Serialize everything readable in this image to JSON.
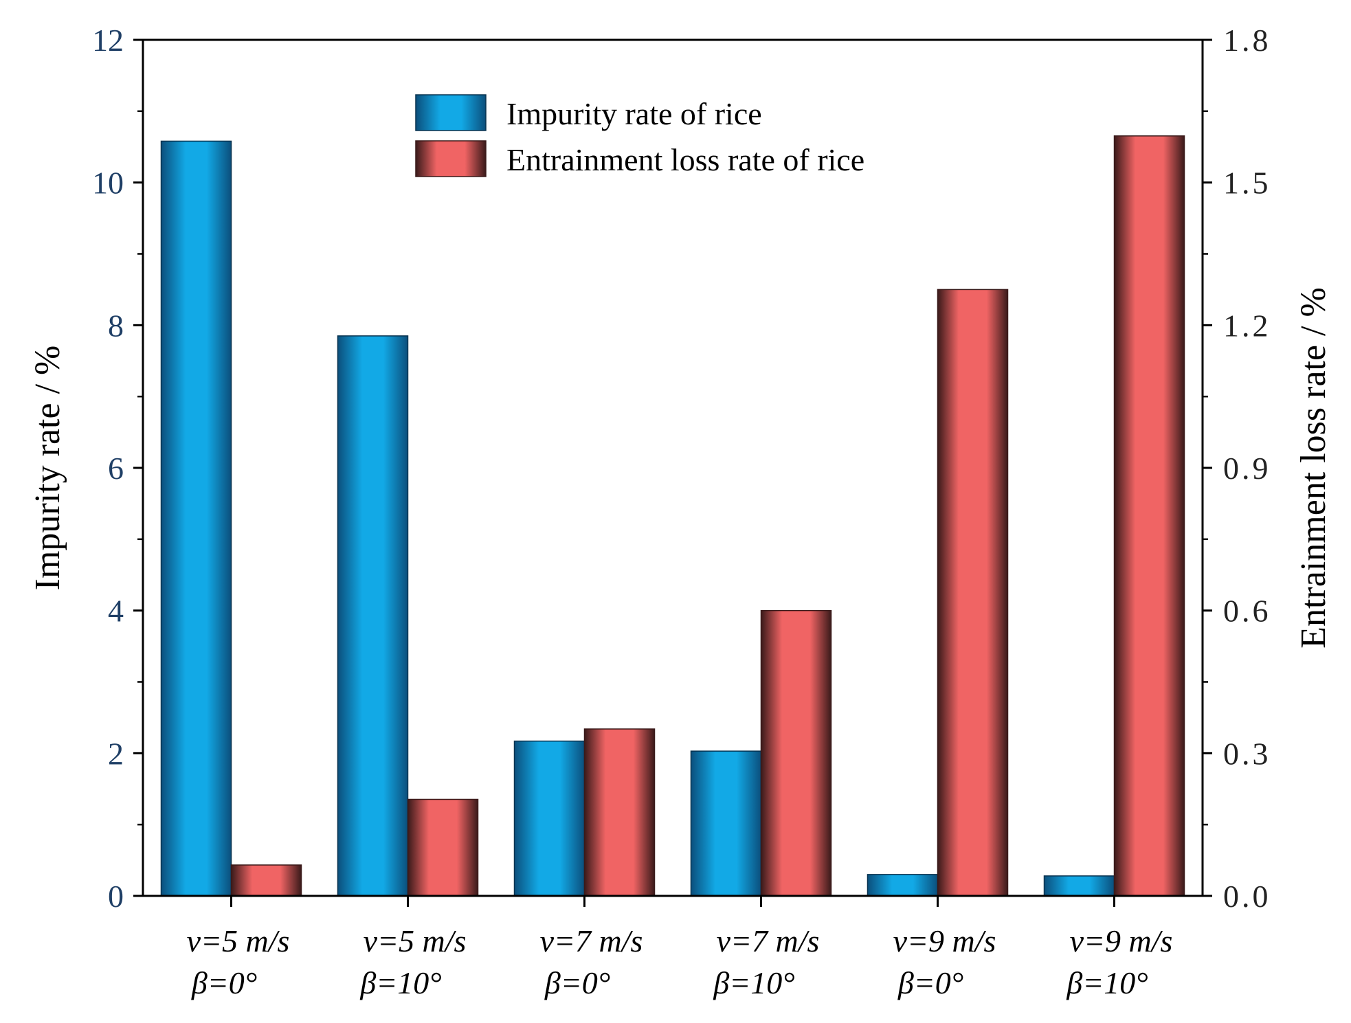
{
  "chart_data": {
    "type": "bar",
    "categories": [
      {
        "line1": "v=5 m/s",
        "line2": "β=0°"
      },
      {
        "line1": "v=5 m/s",
        "line2": "β=10°"
      },
      {
        "line1": "v=7 m/s",
        "line2": "β=0°"
      },
      {
        "line1": "v=7 m/s",
        "line2": "β=10°"
      },
      {
        "line1": "v=9 m/s",
        "line2": "β=0°"
      },
      {
        "line1": "v=9 m/s",
        "line2": "β=10°"
      }
    ],
    "series": [
      {
        "name": "Impurity rate of rice",
        "axis": "left",
        "color": "#1aa3e0",
        "values": [
          10.58,
          7.85,
          2.17,
          2.03,
          0.3,
          0.28
        ]
      },
      {
        "name": "Entrainment loss rate of rice",
        "axis": "right",
        "color": "#f26060",
        "values": [
          0.065,
          0.203,
          0.351,
          0.6,
          1.275,
          1.598
        ]
      }
    ],
    "left_axis": {
      "label": "Impurity rate / %",
      "range": [
        0,
        12
      ],
      "ticks": [
        "0",
        "2",
        "4",
        "6",
        "8",
        "10",
        "12"
      ]
    },
    "right_axis": {
      "label": "Entrainment loss rate / %",
      "range": [
        0,
        1.8
      ],
      "ticks": [
        "0.0",
        "0.3",
        "0.6",
        "0.9",
        "1.2",
        "1.5",
        "1.8"
      ]
    },
    "legend_position": "top-center"
  }
}
